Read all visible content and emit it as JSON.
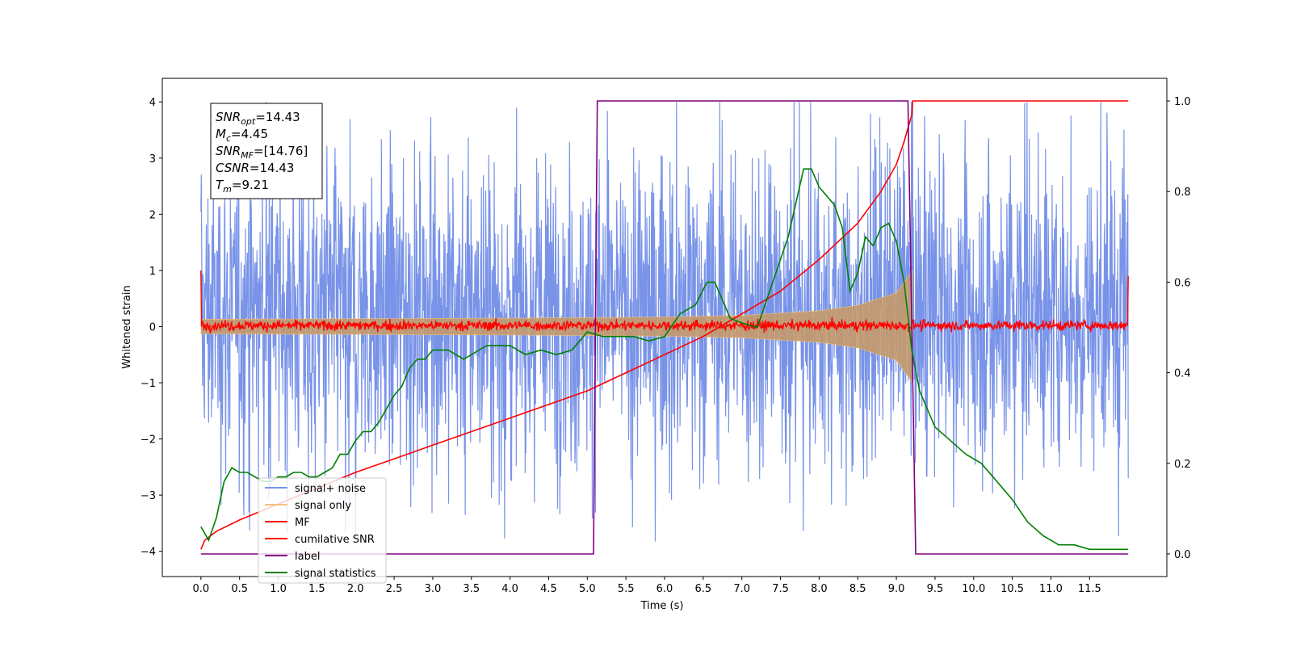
{
  "chart_data": {
    "type": "line",
    "xlabel": "Time (s)",
    "ylabel": "Whitened strain",
    "xlim": [
      -0.5,
      12.5
    ],
    "ylim": [
      -4.45,
      4.42
    ],
    "y2lim": [
      -0.05,
      1.05
    ],
    "x_ticks": [
      "0.0",
      "0.5",
      "1.0",
      "1.5",
      "2.0",
      "2.5",
      "3.0",
      "3.5",
      "4.0",
      "4.5",
      "5.0",
      "5.5",
      "6.0",
      "6.5",
      "7.0",
      "7.5",
      "8.0",
      "8.5",
      "9.0",
      "9.5",
      "10.0",
      "10.5",
      "11.0",
      "11.5"
    ],
    "y_ticks": [
      "4",
      "3",
      "2",
      "1",
      "0",
      "−1",
      "−2",
      "−3",
      "−4"
    ],
    "y2_ticks": [
      "1.0",
      "0.8",
      "0.6",
      "0.4",
      "0.2",
      "0.0"
    ],
    "annotation": {
      "lines": [
        {
          "sym": "SNR",
          "sub": "opt",
          "value": "=14.43"
        },
        {
          "sym": "M",
          "sub": "c",
          "value": "=4.45"
        },
        {
          "sym": "SNR",
          "sub": "MF",
          "value": "=[14.76]"
        },
        {
          "sym": "CSNR",
          "sub": "",
          "value": "=14.43"
        },
        {
          "sym": "T",
          "sub": "m",
          "value": "=9.21"
        }
      ]
    },
    "legend": {
      "placement": "lower-left",
      "entries": [
        {
          "label": "signal+ noise",
          "color": "#7893e8"
        },
        {
          "label": "signal only",
          "color": "#f5c07c"
        },
        {
          "label": "MF",
          "color": "#ff0000"
        },
        {
          "label": "cumilative SNR",
          "color": "#ff0000"
        },
        {
          "label": "label",
          "color": "#800080"
        },
        {
          "label": "signal statistics",
          "color": "#008000"
        }
      ]
    },
    "series": [
      {
        "name": "signal+ noise",
        "axis": "left",
        "kind": "noise-band",
        "x_range": [
          0.0,
          12.0
        ],
        "typical_range": [
          -2.2,
          2.7
        ],
        "peak_range": [
          -4.1,
          4.0
        ]
      },
      {
        "name": "signal only",
        "axis": "left",
        "kind": "chirp-envelope",
        "x_range": [
          0.0,
          9.21
        ],
        "amplitude": [
          [
            0.0,
            0.13
          ],
          [
            4.0,
            0.15
          ],
          [
            6.0,
            0.17
          ],
          [
            7.0,
            0.2
          ],
          [
            8.0,
            0.28
          ],
          [
            8.5,
            0.38
          ],
          [
            9.0,
            0.6
          ],
          [
            9.21,
            1.0
          ]
        ]
      },
      {
        "name": "MF",
        "axis": "left",
        "kind": "noise-line",
        "x_range": [
          0.0,
          12.0
        ],
        "typical_range": [
          -0.08,
          0.12
        ],
        "endpoints": [
          [
            0.0,
            1.0
          ],
          [
            12.0,
            0.9
          ]
        ]
      },
      {
        "name": "cumilative SNR",
        "axis": "right",
        "x": [
          0.0,
          0.05,
          0.2,
          0.5,
          1.0,
          1.5,
          2.0,
          2.5,
          3.0,
          3.5,
          4.0,
          4.5,
          5.0,
          5.5,
          6.0,
          6.5,
          7.0,
          7.5,
          8.0,
          8.5,
          8.8,
          9.0,
          9.1,
          9.2,
          9.21,
          10.0,
          11.0,
          12.0
        ],
        "y": [
          0.01,
          0.03,
          0.05,
          0.075,
          0.11,
          0.145,
          0.18,
          0.21,
          0.24,
          0.27,
          0.3,
          0.33,
          0.36,
          0.4,
          0.44,
          0.48,
          0.53,
          0.58,
          0.65,
          0.73,
          0.8,
          0.86,
          0.91,
          0.97,
          1.0,
          1.0,
          1.0,
          1.0
        ]
      },
      {
        "name": "label",
        "axis": "right",
        "x": [
          0.0,
          5.08,
          5.13,
          9.15,
          9.25,
          12.0
        ],
        "y": [
          0.0,
          0.0,
          1.0,
          1.0,
          0.0,
          0.0
        ]
      },
      {
        "name": "signal statistics",
        "axis": "right",
        "x": [
          0.0,
          0.1,
          0.2,
          0.3,
          0.4,
          0.5,
          0.6,
          0.7,
          0.8,
          0.9,
          1.0,
          1.1,
          1.2,
          1.3,
          1.4,
          1.5,
          1.6,
          1.7,
          1.8,
          1.9,
          2.0,
          2.1,
          2.2,
          2.3,
          2.4,
          2.5,
          2.6,
          2.7,
          2.8,
          2.9,
          3.0,
          3.1,
          3.2,
          3.3,
          3.4,
          3.5,
          3.6,
          3.7,
          3.8,
          3.9,
          4.0,
          4.2,
          4.4,
          4.6,
          4.8,
          5.0,
          5.2,
          5.4,
          5.6,
          5.8,
          6.0,
          6.2,
          6.4,
          6.55,
          6.65,
          6.75,
          6.85,
          7.0,
          7.2,
          7.4,
          7.6,
          7.8,
          7.9,
          8.0,
          8.1,
          8.2,
          8.3,
          8.4,
          8.5,
          8.6,
          8.7,
          8.8,
          8.9,
          9.0,
          9.1,
          9.2,
          9.3,
          9.5,
          9.7,
          9.9,
          10.1,
          10.3,
          10.5,
          10.7,
          10.9,
          11.1,
          11.3,
          11.5,
          11.7,
          11.9,
          12.0
        ],
        "y": [
          0.06,
          0.03,
          0.08,
          0.16,
          0.19,
          0.18,
          0.18,
          0.17,
          0.16,
          0.16,
          0.17,
          0.17,
          0.18,
          0.18,
          0.17,
          0.17,
          0.18,
          0.19,
          0.22,
          0.22,
          0.25,
          0.27,
          0.27,
          0.29,
          0.32,
          0.35,
          0.37,
          0.41,
          0.43,
          0.43,
          0.45,
          0.45,
          0.45,
          0.44,
          0.43,
          0.44,
          0.45,
          0.46,
          0.46,
          0.46,
          0.46,
          0.44,
          0.45,
          0.44,
          0.45,
          0.49,
          0.48,
          0.48,
          0.48,
          0.47,
          0.48,
          0.53,
          0.55,
          0.6,
          0.6,
          0.56,
          0.52,
          0.51,
          0.5,
          0.6,
          0.7,
          0.85,
          0.85,
          0.81,
          0.79,
          0.77,
          0.72,
          0.58,
          0.62,
          0.7,
          0.68,
          0.72,
          0.73,
          0.69,
          0.6,
          0.45,
          0.36,
          0.28,
          0.25,
          0.22,
          0.2,
          0.16,
          0.12,
          0.07,
          0.04,
          0.02,
          0.02,
          0.01,
          0.01,
          0.01,
          0.01
        ]
      }
    ]
  }
}
